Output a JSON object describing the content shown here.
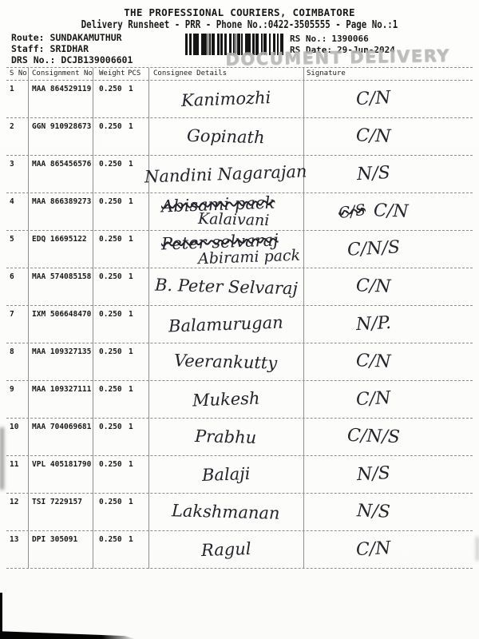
{
  "page": {
    "title": "THE PROFESSIONAL COURIERS, COIMBATORE",
    "subtitle": "Delivery Runsheet - PRR - Phone No.:0422-3505555 - Page No.:1",
    "stamp": "DOCUMENT DELIVERY"
  },
  "info": {
    "route_label": "Route:",
    "route_value": "SUNDAKAMUTHUR",
    "staff_label": "Staff:",
    "staff_value": "SRIDHAR",
    "drs_label": "DRS No.:",
    "drs_value": "DCJB139006601",
    "rs_no_label": "RS No.:",
    "rs_no_value": "1390066",
    "rs_date_label": "RS Date:",
    "rs_date_value": "29-Jun-2024"
  },
  "colors": {
    "ink": "#191919",
    "handwriting_ink": "#24242c",
    "stamp_gray": "#b2b2b2",
    "rule_gray": "#8d8d8d"
  },
  "table": {
    "headers": {
      "sno": "S No",
      "consignment": "Consignment No",
      "weight": "Weight",
      "pcs": "PCS",
      "consignee": "Consignee Details",
      "signature": "Signature"
    },
    "rows": [
      {
        "sno": "1",
        "consignment": "MAA 864529119",
        "weight": "0.250",
        "pcs": "1",
        "consignee_struck": "",
        "consignee": "Kanimozhi",
        "signature_struck": "",
        "signature": "C/N"
      },
      {
        "sno": "2",
        "consignment": "GGN 910928673",
        "weight": "0.250",
        "pcs": "1",
        "consignee_struck": "",
        "consignee": "Gopinath",
        "signature_struck": "",
        "signature": "C/N"
      },
      {
        "sno": "3",
        "consignment": "MAA 865456576",
        "weight": "0.250",
        "pcs": "1",
        "consignee_struck": "",
        "consignee": "Nandini Nagarajan",
        "signature_struck": "",
        "signature": "N/S"
      },
      {
        "sno": "4",
        "consignment": "MAA 866389273",
        "weight": "0.250",
        "pcs": "1",
        "consignee_struck": "Abisami pack",
        "consignee": "Kalaivani",
        "signature_struck": "C/S",
        "signature": "C/N"
      },
      {
        "sno": "5",
        "consignment": "EDQ 16695122",
        "weight": "0.250",
        "pcs": "1",
        "consignee_struck": "Peter selvaraj",
        "consignee": "Abirami pack",
        "signature_struck": "",
        "signature": "C/N/S"
      },
      {
        "sno": "6",
        "consignment": "MAA 574085158",
        "weight": "0.250",
        "pcs": "1",
        "consignee_struck": "",
        "consignee": "B. Peter Selvaraj",
        "signature_struck": "",
        "signature": "C/N"
      },
      {
        "sno": "7",
        "consignment": "IXM 506648470",
        "weight": "0.250",
        "pcs": "1",
        "consignee_struck": "",
        "consignee": "Balamurugan",
        "signature_struck": "",
        "signature": "N/P."
      },
      {
        "sno": "8",
        "consignment": "MAA 109327135",
        "weight": "0.250",
        "pcs": "1",
        "consignee_struck": "",
        "consignee": "Veerankutty",
        "signature_struck": "",
        "signature": "C/N"
      },
      {
        "sno": "9",
        "consignment": "MAA 109327111",
        "weight": "0.250",
        "pcs": "1",
        "consignee_struck": "",
        "consignee": "Mukesh",
        "signature_struck": "",
        "signature": "C/N"
      },
      {
        "sno": "10",
        "consignment": "MAA 704069681",
        "weight": "0.250",
        "pcs": "1",
        "consignee_struck": "",
        "consignee": "Prabhu",
        "signature_struck": "",
        "signature": "C/N/S"
      },
      {
        "sno": "11",
        "consignment": "VPL 405181790",
        "weight": "0.250",
        "pcs": "1",
        "consignee_struck": "",
        "consignee": "Balaji",
        "signature_struck": "",
        "signature": "N/S"
      },
      {
        "sno": "12",
        "consignment": "TSI 7229157",
        "weight": "0.250",
        "pcs": "1",
        "consignee_struck": "",
        "consignee": "Lakshmanan",
        "signature_struck": "",
        "signature": "N/S"
      },
      {
        "sno": "13",
        "consignment": "DPI 305091",
        "weight": "0.250",
        "pcs": "1",
        "consignee_struck": "",
        "consignee": "Ragul",
        "signature_struck": "",
        "signature": "C/N"
      }
    ]
  }
}
